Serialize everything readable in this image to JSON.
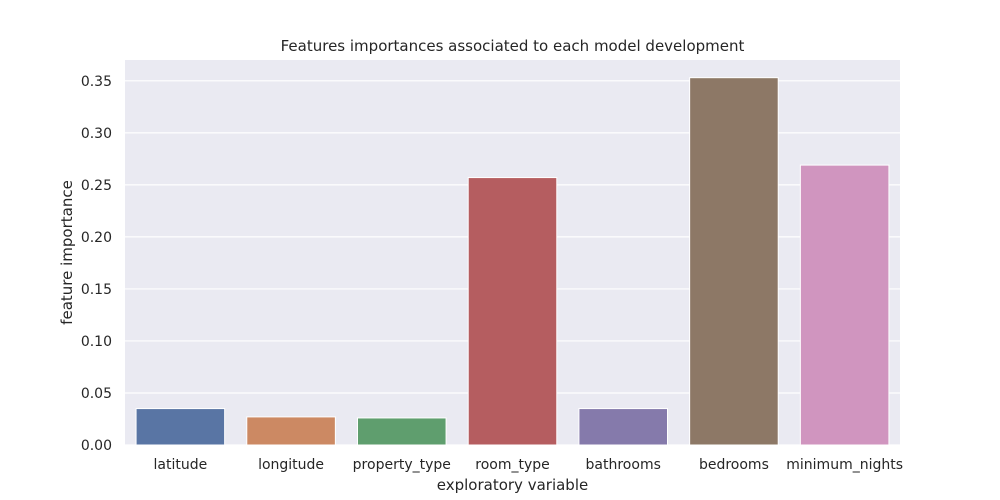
{
  "chart_data": {
    "type": "bar",
    "title": "Features importances associated to each model development",
    "xlabel": "exploratory variable",
    "ylabel": "feature importance",
    "categories": [
      "latitude",
      "longitude",
      "property_type",
      "room_type",
      "bathrooms",
      "bedrooms",
      "minimum_nights"
    ],
    "values": [
      0.035,
      0.027,
      0.026,
      0.257,
      0.035,
      0.353,
      0.269
    ],
    "colors": [
      "#5975a4",
      "#cc8963",
      "#5f9e6e",
      "#b55d60",
      "#857aab",
      "#8d7866",
      "#d095bf"
    ],
    "ylim": [
      0,
      0.37
    ],
    "yticks": [
      0.0,
      0.05,
      0.1,
      0.15,
      0.2,
      0.25,
      0.3,
      0.35
    ],
    "ytick_labels": [
      "0.00",
      "0.05",
      "0.10",
      "0.15",
      "0.20",
      "0.25",
      "0.30",
      "0.35"
    ],
    "grid": true,
    "background": "#eaeaf2"
  }
}
